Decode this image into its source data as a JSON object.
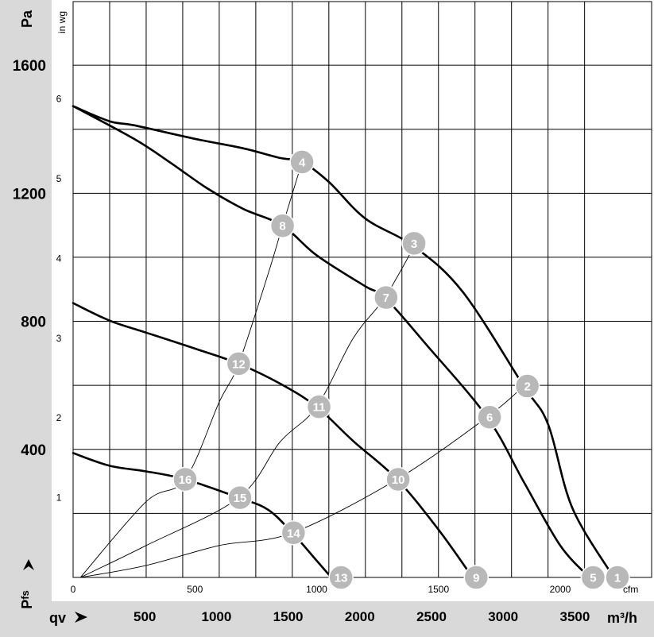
{
  "chart_data": {
    "type": "line",
    "title": "",
    "xlabel": "qv",
    "ylabel": "Pfs",
    "x_unit_primary": "m³/h",
    "x_unit_secondary": "cfm",
    "y_unit_primary": "Pa",
    "y_unit_secondary": "in wg",
    "xlim_cfm": [
      0,
      2250
    ],
    "ylim_inwg": [
      0,
      7
    ],
    "grid": true,
    "pa_ticks": [
      {
        "label": "1600",
        "value": 1600
      },
      {
        "label": "1200",
        "value": 1200
      },
      {
        "label": "800",
        "value": 800
      },
      {
        "label": "400",
        "value": 400
      }
    ],
    "inwg_ticks": [
      {
        "label": "6",
        "value": 6
      },
      {
        "label": "5",
        "value": 5
      },
      {
        "label": "4",
        "value": 4
      },
      {
        "label": "3",
        "value": 3
      },
      {
        "label": "2",
        "value": 2
      },
      {
        "label": "1",
        "value": 1
      }
    ],
    "cfm_ticks": [
      {
        "label": "0",
        "value": 0
      },
      {
        "label": "500",
        "value": 500
      },
      {
        "label": "1000",
        "value": 1000
      },
      {
        "label": "1500",
        "value": 1500
      },
      {
        "label": "2000",
        "value": 2000
      }
    ],
    "m3h_ticks": [
      {
        "label": "500",
        "value": 500
      },
      {
        "label": "1000",
        "value": 1000
      },
      {
        "label": "1500",
        "value": 1500
      },
      {
        "label": "2000",
        "value": 2000
      },
      {
        "label": "2500",
        "value": 2500
      },
      {
        "label": "3000",
        "value": 3000
      },
      {
        "label": "3500",
        "value": 3500
      }
    ],
    "fan_curves": [
      {
        "points": [
          [
            0,
            5.91
          ],
          [
            150,
            5.72
          ],
          [
            250,
            5.67
          ],
          [
            500,
            5.5
          ],
          [
            700,
            5.38
          ],
          [
            850,
            5.26
          ],
          [
            940,
            5.21
          ],
          [
            1050,
            4.96
          ],
          [
            1200,
            4.5
          ],
          [
            1400,
            4.15
          ],
          [
            1600,
            3.58
          ],
          [
            1850,
            2.4
          ],
          [
            1950,
            1.92
          ],
          [
            2050,
            0.87
          ],
          [
            2220,
            0.0
          ]
        ]
      },
      {
        "points": [
          [
            0,
            5.91
          ],
          [
            250,
            5.5
          ],
          [
            400,
            5.2
          ],
          [
            550,
            4.88
          ],
          [
            700,
            4.62
          ],
          [
            860,
            4.41
          ],
          [
            1000,
            4.04
          ],
          [
            1200,
            3.65
          ],
          [
            1280,
            3.51
          ],
          [
            1450,
            2.92
          ],
          [
            1700,
            2.01
          ],
          [
            1850,
            1.2
          ],
          [
            2000,
            0.4
          ],
          [
            2120,
            0.0
          ]
        ]
      },
      {
        "points": [
          [
            0,
            3.44
          ],
          [
            150,
            3.22
          ],
          [
            300,
            3.07
          ],
          [
            500,
            2.87
          ],
          [
            680,
            2.68
          ],
          [
            850,
            2.43
          ],
          [
            1000,
            2.14
          ],
          [
            1150,
            1.71
          ],
          [
            1330,
            1.23
          ],
          [
            1500,
            0.6
          ],
          [
            1640,
            0.0
          ]
        ]
      },
      {
        "points": [
          [
            0,
            1.56
          ],
          [
            150,
            1.4
          ],
          [
            300,
            1.33
          ],
          [
            460,
            1.23
          ],
          [
            680,
            1.0
          ],
          [
            800,
            0.85
          ],
          [
            900,
            0.56
          ],
          [
            1000,
            0.21
          ],
          [
            1060,
            0.0
          ]
        ]
      }
    ],
    "system_curves": [
      {
        "points": [
          [
            30,
            0.0
          ],
          [
            300,
            0.95
          ],
          [
            460,
            1.23
          ],
          [
            600,
            2.2
          ],
          [
            680,
            2.68
          ],
          [
            800,
            3.8
          ],
          [
            860,
            4.41
          ],
          [
            940,
            5.21
          ]
        ]
      },
      {
        "points": [
          [
            30,
            0.0
          ],
          [
            300,
            0.4
          ],
          [
            680,
            1.0
          ],
          [
            850,
            1.7
          ],
          [
            1000,
            2.14
          ],
          [
            1150,
            3.0
          ],
          [
            1280,
            3.51
          ],
          [
            1400,
            4.15
          ]
        ]
      },
      {
        "points": [
          [
            30,
            0.0
          ],
          [
            300,
            0.15
          ],
          [
            600,
            0.4
          ],
          [
            900,
            0.56
          ],
          [
            1330,
            1.23
          ],
          [
            1700,
            2.01
          ],
          [
            1850,
            2.4
          ]
        ]
      }
    ],
    "markers": [
      {
        "label": "1",
        "x": 2235,
        "y": 0.0
      },
      {
        "label": "2",
        "x": 1865,
        "y": 2.4
      },
      {
        "label": "3",
        "x": 1400,
        "y": 4.19
      },
      {
        "label": "4",
        "x": 940,
        "y": 5.21
      },
      {
        "label": "5",
        "x": 2135,
        "y": 0.0
      },
      {
        "label": "6",
        "x": 1710,
        "y": 2.01
      },
      {
        "label": "7",
        "x": 1285,
        "y": 3.51
      },
      {
        "label": "8",
        "x": 860,
        "y": 4.41
      },
      {
        "label": "9",
        "x": 1655,
        "y": 0.0
      },
      {
        "label": "10",
        "x": 1335,
        "y": 1.23
      },
      {
        "label": "11",
        "x": 1010,
        "y": 2.14
      },
      {
        "label": "12",
        "x": 680,
        "y": 2.68
      },
      {
        "label": "13",
        "x": 1100,
        "y": 0.0
      },
      {
        "label": "14",
        "x": 905,
        "y": 0.56
      },
      {
        "label": "15",
        "x": 685,
        "y": 1.0
      },
      {
        "label": "16",
        "x": 460,
        "y": 1.23
      }
    ]
  }
}
